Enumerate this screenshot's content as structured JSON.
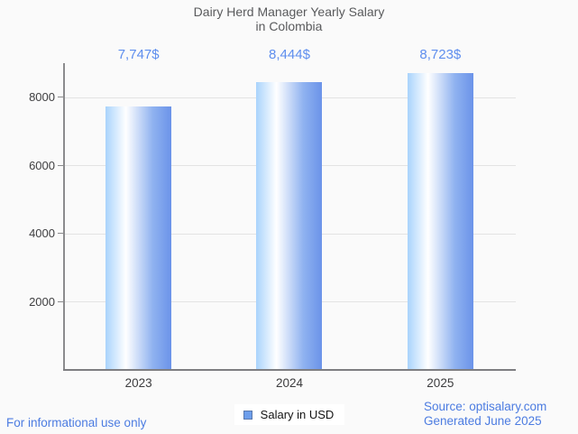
{
  "title": "Dairy Herd Manager Yearly Salary\nin Colombia",
  "chart_data": {
    "type": "bar",
    "categories": [
      "2023",
      "2024",
      "2025"
    ],
    "series": [
      {
        "name": "Salary in USD",
        "values": [
          7747,
          8444,
          8723
        ]
      }
    ],
    "value_labels": [
      "7,747$",
      "8,444$",
      "8,723$"
    ],
    "title": "Dairy Herd Manager Yearly Salary in Colombia",
    "xlabel": "",
    "ylabel": "",
    "yticks": [
      2000,
      4000,
      6000,
      8000
    ],
    "ylim": [
      0,
      9000
    ],
    "grid": true,
    "legend_position": "bottom-center",
    "bar_color_gradient": [
      "#a9d3fc",
      "#ffffff",
      "#6b93e9"
    ],
    "value_label_color": "#5e8eee"
  },
  "legend": {
    "label": "Salary in USD",
    "marker_color": "#6d9eeb",
    "marker_border_color": "#5a79ad"
  },
  "footer": {
    "disclaimer": "For informational use only",
    "source": "Source: optisalary.com",
    "generated": "Generated June 2025",
    "text_color": "#4c7ce1"
  },
  "colors": {
    "background": "#fafafa",
    "title_text": "#595a5c",
    "axis_line": "#8b8b8d",
    "gridline": "#e3e3e3",
    "tick_text": "#3f3f41"
  }
}
